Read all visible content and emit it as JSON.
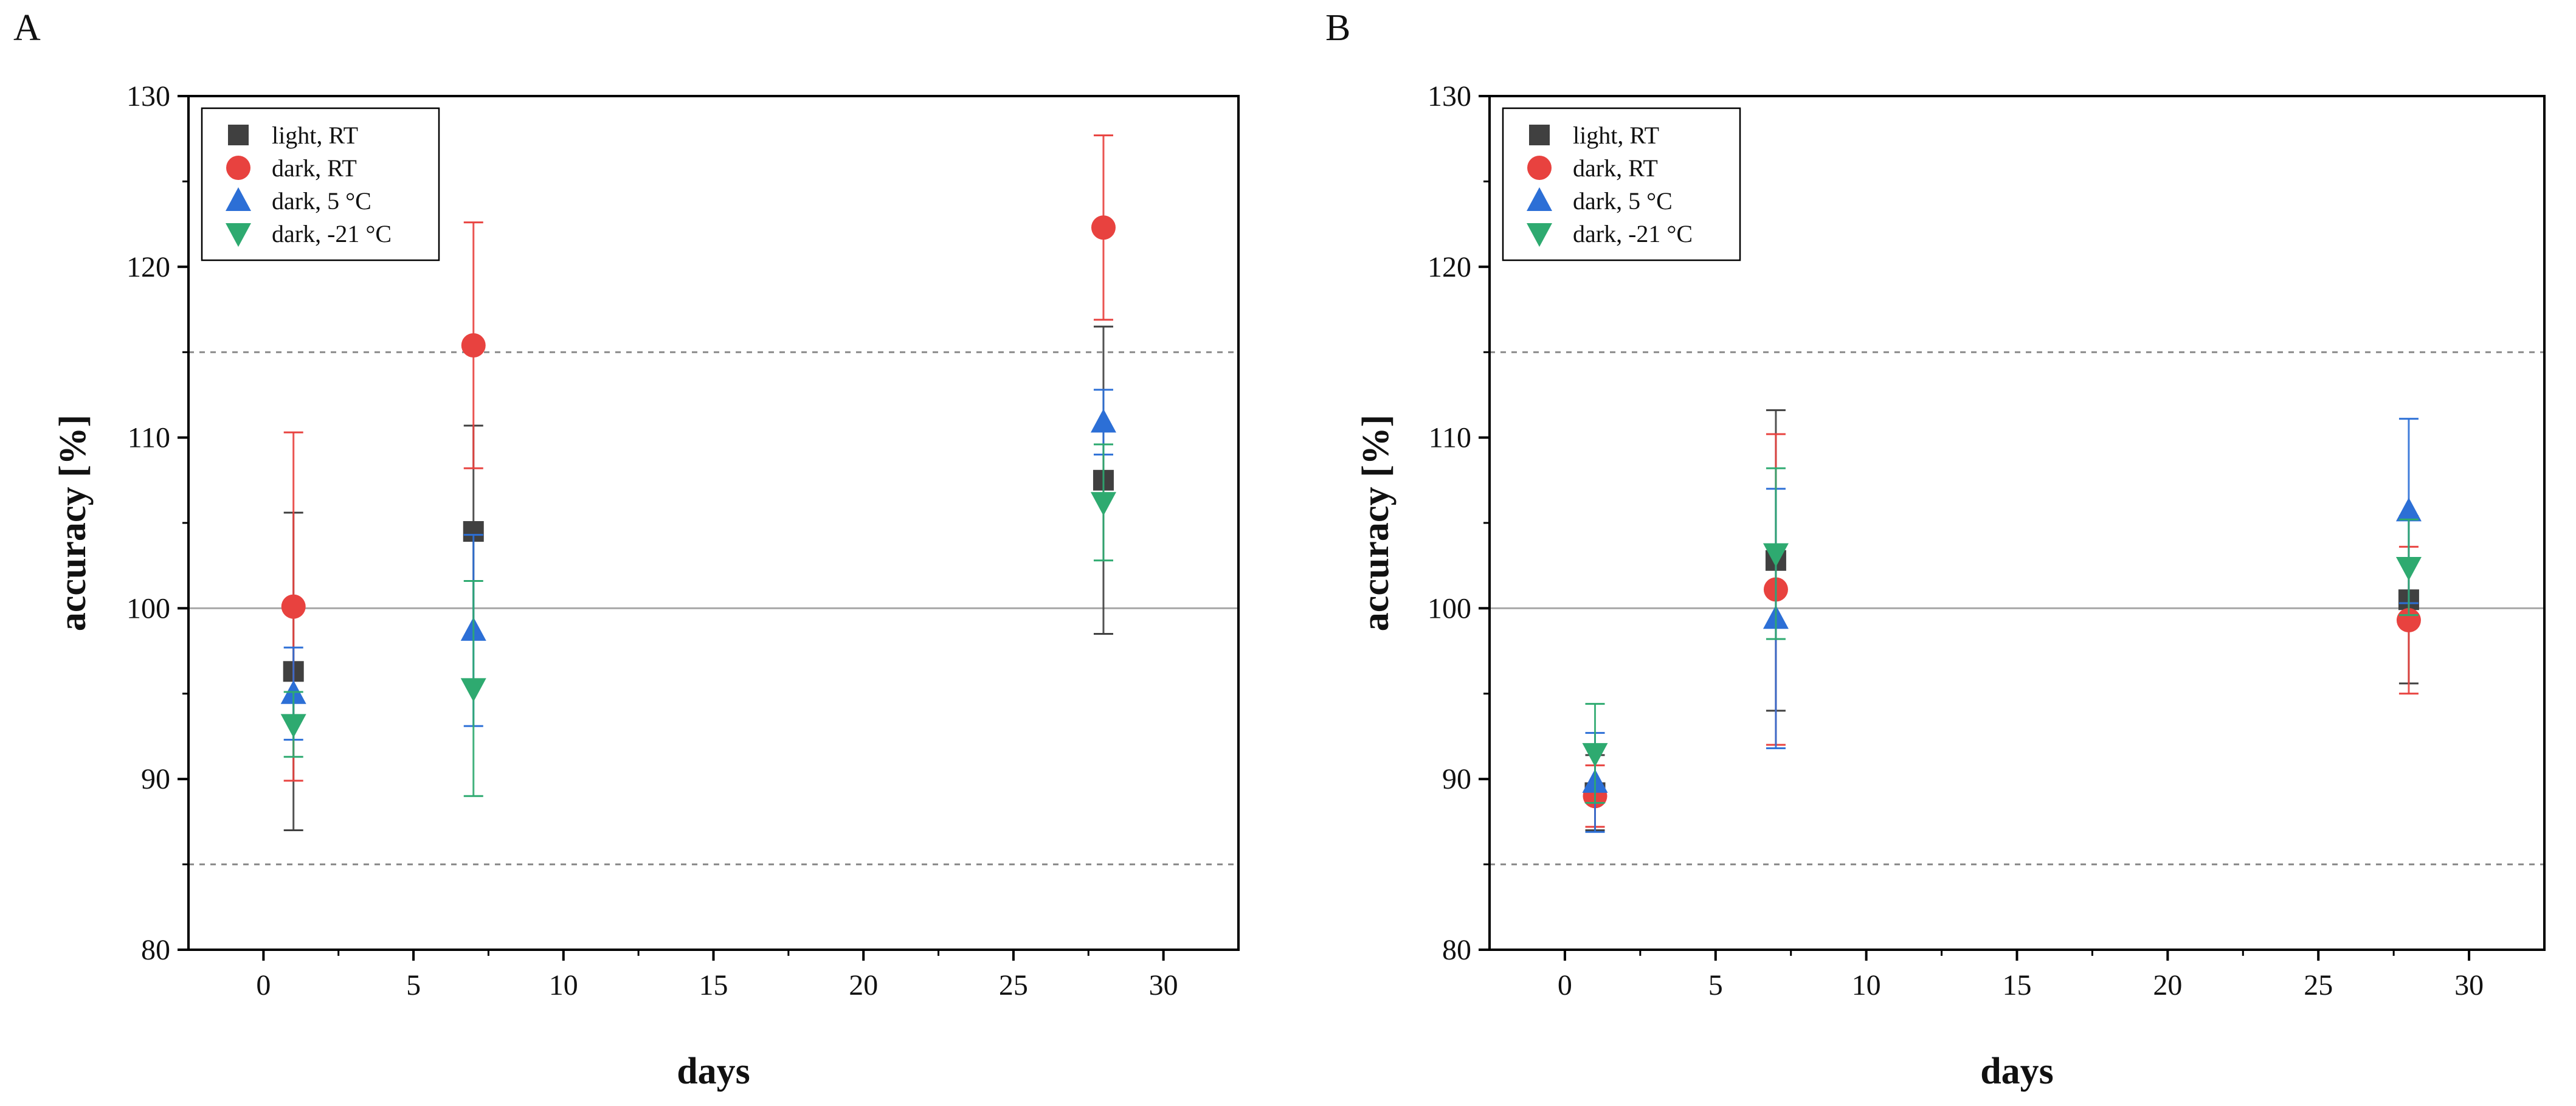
{
  "chart_data": [
    {
      "panel": "A",
      "type": "scatter",
      "xlabel": "days",
      "ylabel": "accuracy [%]",
      "xlim": [
        -2.5,
        32.5
      ],
      "ylim": [
        80,
        130
      ],
      "xticks": [
        0,
        5,
        10,
        15,
        20,
        25,
        30
      ],
      "yticks": [
        80,
        90,
        100,
        110,
        120,
        130
      ],
      "reference_lines": [
        {
          "y": 85,
          "style": "dashed"
        },
        {
          "y": 100,
          "style": "solid"
        },
        {
          "y": 115,
          "style": "dashed"
        }
      ],
      "legend_position": "top-left",
      "series": [
        {
          "name": "light, RT",
          "marker": "square",
          "color": "#404040",
          "x": [
            1,
            7,
            28
          ],
          "y": [
            96.3,
            104.5,
            107.5
          ],
          "err": [
            9.3,
            6.2,
            9.0
          ]
        },
        {
          "name": "dark, RT",
          "marker": "circle",
          "color": "#e8423f",
          "x": [
            1,
            7,
            28
          ],
          "y": [
            100.1,
            115.4,
            122.3
          ],
          "err": [
            10.2,
            7.2,
            5.4
          ]
        },
        {
          "name": "dark, 5 °C",
          "marker": "triangle-up",
          "color": "#2c6fd6",
          "x": [
            1,
            7,
            28
          ],
          "y": [
            95.0,
            98.7,
            110.9
          ],
          "err": [
            2.7,
            5.6,
            1.9
          ]
        },
        {
          "name": "dark, -21 °C",
          "marker": "triangle-down",
          "color": "#2eaa70",
          "x": [
            1,
            7,
            28
          ],
          "y": [
            93.2,
            95.3,
            106.2
          ],
          "err": [
            1.9,
            6.3,
            3.4
          ]
        }
      ]
    },
    {
      "panel": "B",
      "type": "scatter",
      "xlabel": "days",
      "ylabel": "accuracy [%]",
      "xlim": [
        -2.5,
        32.5
      ],
      "ylim": [
        80,
        130
      ],
      "xticks": [
        0,
        5,
        10,
        15,
        20,
        25,
        30
      ],
      "yticks": [
        80,
        90,
        100,
        110,
        120,
        130
      ],
      "reference_lines": [
        {
          "y": 85,
          "style": "dashed"
        },
        {
          "y": 100,
          "style": "solid"
        },
        {
          "y": 115,
          "style": "dashed"
        }
      ],
      "legend_position": "top-left",
      "series": [
        {
          "name": "light, RT",
          "marker": "square",
          "color": "#404040",
          "x": [
            1,
            7,
            28
          ],
          "y": [
            89.2,
            102.8,
            100.5
          ],
          "err": [
            2.2,
            8.8,
            4.9
          ]
        },
        {
          "name": "dark, RT",
          "marker": "circle",
          "color": "#e8423f",
          "x": [
            1,
            7,
            28
          ],
          "y": [
            89.0,
            101.1,
            99.3
          ],
          "err": [
            1.8,
            9.1,
            4.3
          ]
        },
        {
          "name": "dark, 5 °C",
          "marker": "triangle-up",
          "color": "#2c6fd6",
          "x": [
            1,
            7,
            28
          ],
          "y": [
            89.8,
            99.4,
            105.7
          ],
          "err": [
            2.9,
            7.6,
            5.4
          ]
        },
        {
          "name": "dark, -21 °C",
          "marker": "triangle-down",
          "color": "#2eaa70",
          "x": [
            1,
            7,
            28
          ],
          "y": [
            91.5,
            103.2,
            102.4
          ],
          "err": [
            2.9,
            5.0,
            2.8
          ]
        }
      ]
    }
  ]
}
